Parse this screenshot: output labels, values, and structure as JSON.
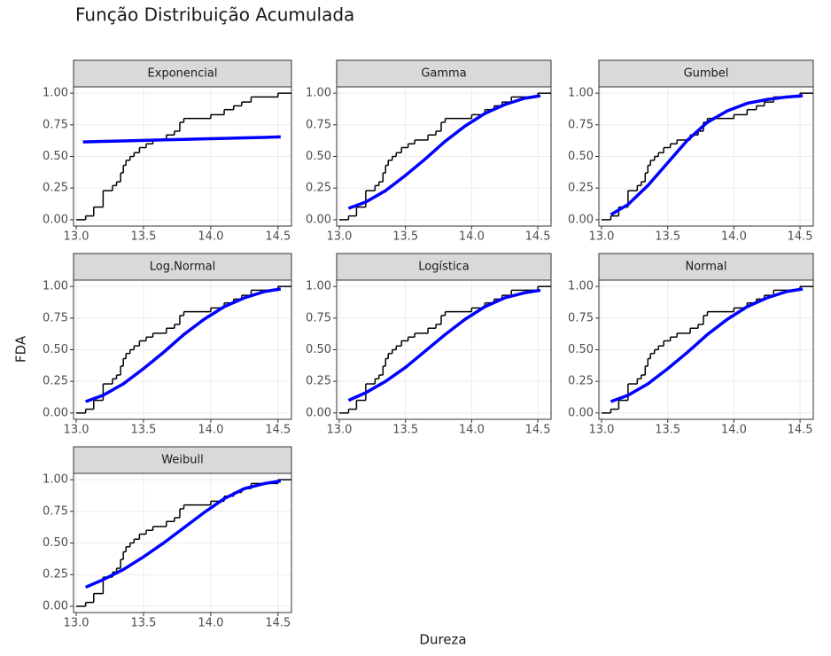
{
  "title": "Função Distribuição Acumulada",
  "xlabel": "Dureza",
  "ylabel": "FDA",
  "chart_data": [
    {
      "type": "line",
      "title": "Exponencial",
      "xlim": [
        12.98,
        14.6
      ],
      "ylim": [
        -0.05,
        1.05
      ],
      "grid": true,
      "xticks": [
        {
          "value": 13,
          "label": "13.0"
        },
        13.5,
        {
          "value": 14,
          "label": "14.0"
        },
        14.5
      ],
      "yticks": [
        {
          "value": 0,
          "label": "0.00"
        },
        0.25,
        {
          "value": 0.5,
          "label": "0.50"
        },
        0.75,
        {
          "value": 1,
          "label": "1.00"
        }
      ],
      "series": [
        {
          "color": "#000000",
          "step": "post",
          "x": [
            13.0,
            13.07,
            13.13,
            13.2,
            13.27,
            13.3,
            13.33,
            13.35,
            13.37,
            13.4,
            13.43,
            13.47,
            13.52,
            13.57,
            13.67,
            13.73,
            13.77,
            13.8,
            14.0,
            14.1,
            14.17,
            14.23,
            14.3,
            14.5,
            14.6
          ],
          "values": [
            0,
            0.03,
            0.1,
            0.23,
            0.27,
            0.3,
            0.37,
            0.43,
            0.47,
            0.5,
            0.53,
            0.57,
            0.6,
            0.63,
            0.67,
            0.7,
            0.77,
            0.8,
            0.83,
            0.87,
            0.9,
            0.93,
            0.97,
            1.0,
            1.0
          ]
        },
        {
          "color": "#0000ff",
          "x": [
            13.05,
            13.2,
            13.35,
            13.5,
            13.65,
            13.8,
            13.95,
            14.1,
            14.25,
            14.4,
            14.52
          ],
          "values": [
            0.615,
            0.619,
            0.623,
            0.627,
            0.631,
            0.635,
            0.639,
            0.643,
            0.647,
            0.651,
            0.655
          ]
        }
      ]
    },
    {
      "type": "line",
      "title": "Gamma",
      "xlim": [
        12.98,
        14.6
      ],
      "ylim": [
        -0.05,
        1.05
      ],
      "grid": true,
      "xticks": [
        {
          "value": 13,
          "label": "13.0"
        },
        13.5,
        {
          "value": 14,
          "label": "14.0"
        },
        14.5
      ],
      "yticks": [
        {
          "value": 0,
          "label": "0.00"
        },
        0.25,
        {
          "value": 0.5,
          "label": "0.50"
        },
        0.75,
        {
          "value": 1,
          "label": "1.00"
        }
      ],
      "series": [
        {
          "color": "#000000",
          "step": "post",
          "x": [
            13.0,
            13.07,
            13.13,
            13.2,
            13.27,
            13.3,
            13.33,
            13.35,
            13.37,
            13.4,
            13.43,
            13.47,
            13.52,
            13.57,
            13.67,
            13.73,
            13.77,
            13.8,
            14.0,
            14.1,
            14.17,
            14.23,
            14.3,
            14.5,
            14.6
          ],
          "values": [
            0,
            0.03,
            0.1,
            0.23,
            0.27,
            0.3,
            0.37,
            0.43,
            0.47,
            0.5,
            0.53,
            0.57,
            0.6,
            0.63,
            0.67,
            0.7,
            0.77,
            0.8,
            0.83,
            0.87,
            0.9,
            0.93,
            0.97,
            1.0,
            1.0
          ]
        },
        {
          "color": "#0000ff",
          "x": [
            13.07,
            13.2,
            13.35,
            13.5,
            13.65,
            13.8,
            13.95,
            14.1,
            14.25,
            14.4,
            14.52
          ],
          "values": [
            0.09,
            0.14,
            0.23,
            0.35,
            0.48,
            0.62,
            0.74,
            0.84,
            0.91,
            0.96,
            0.98
          ]
        }
      ]
    },
    {
      "type": "line",
      "title": "Gumbel",
      "xlim": [
        12.98,
        14.6
      ],
      "ylim": [
        -0.05,
        1.05
      ],
      "grid": true,
      "xticks": [
        {
          "value": 13,
          "label": "13.0"
        },
        13.5,
        {
          "value": 14,
          "label": "14.0"
        },
        14.5
      ],
      "yticks": [
        {
          "value": 0,
          "label": "0.00"
        },
        0.25,
        {
          "value": 0.5,
          "label": "0.50"
        },
        0.75,
        {
          "value": 1,
          "label": "1.00"
        }
      ],
      "series": [
        {
          "color": "#000000",
          "step": "post",
          "x": [
            13.0,
            13.07,
            13.13,
            13.2,
            13.27,
            13.3,
            13.33,
            13.35,
            13.37,
            13.4,
            13.43,
            13.47,
            13.52,
            13.57,
            13.67,
            13.73,
            13.77,
            13.8,
            14.0,
            14.1,
            14.17,
            14.23,
            14.3,
            14.5,
            14.6
          ],
          "values": [
            0,
            0.03,
            0.1,
            0.23,
            0.27,
            0.3,
            0.37,
            0.43,
            0.47,
            0.5,
            0.53,
            0.57,
            0.6,
            0.63,
            0.67,
            0.7,
            0.77,
            0.8,
            0.83,
            0.87,
            0.9,
            0.93,
            0.97,
            1.0,
            1.0
          ]
        },
        {
          "color": "#0000ff",
          "x": [
            13.07,
            13.2,
            13.35,
            13.5,
            13.65,
            13.8,
            13.95,
            14.1,
            14.25,
            14.4,
            14.52
          ],
          "values": [
            0.04,
            0.12,
            0.27,
            0.45,
            0.63,
            0.77,
            0.86,
            0.92,
            0.95,
            0.97,
            0.98
          ]
        }
      ]
    },
    {
      "type": "line",
      "title": "Log.Normal",
      "xlim": [
        12.98,
        14.6
      ],
      "ylim": [
        -0.05,
        1.05
      ],
      "grid": true,
      "xticks": [
        {
          "value": 13,
          "label": "13.0"
        },
        13.5,
        {
          "value": 14,
          "label": "14.0"
        },
        14.5
      ],
      "yticks": [
        {
          "value": 0,
          "label": "0.00"
        },
        0.25,
        {
          "value": 0.5,
          "label": "0.50"
        },
        0.75,
        {
          "value": 1,
          "label": "1.00"
        }
      ],
      "series": [
        {
          "color": "#000000",
          "step": "post",
          "x": [
            13.0,
            13.07,
            13.13,
            13.2,
            13.27,
            13.3,
            13.33,
            13.35,
            13.37,
            13.4,
            13.43,
            13.47,
            13.52,
            13.57,
            13.67,
            13.73,
            13.77,
            13.8,
            14.0,
            14.1,
            14.17,
            14.23,
            14.3,
            14.5,
            14.6
          ],
          "values": [
            0,
            0.03,
            0.1,
            0.23,
            0.27,
            0.3,
            0.37,
            0.43,
            0.47,
            0.5,
            0.53,
            0.57,
            0.6,
            0.63,
            0.67,
            0.7,
            0.77,
            0.8,
            0.83,
            0.87,
            0.9,
            0.93,
            0.97,
            1.0,
            1.0
          ]
        },
        {
          "color": "#0000ff",
          "x": [
            13.07,
            13.2,
            13.35,
            13.5,
            13.65,
            13.8,
            13.95,
            14.1,
            14.25,
            14.4,
            14.52
          ],
          "values": [
            0.09,
            0.14,
            0.23,
            0.35,
            0.48,
            0.62,
            0.74,
            0.84,
            0.91,
            0.96,
            0.98
          ]
        }
      ]
    },
    {
      "type": "line",
      "title": "Logística",
      "xlim": [
        12.98,
        14.6
      ],
      "ylim": [
        -0.05,
        1.05
      ],
      "grid": true,
      "xticks": [
        {
          "value": 13,
          "label": "13.0"
        },
        13.5,
        {
          "value": 14,
          "label": "14.0"
        },
        14.5
      ],
      "yticks": [
        {
          "value": 0,
          "label": "0.00"
        },
        0.25,
        {
          "value": 0.5,
          "label": "0.50"
        },
        0.75,
        {
          "value": 1,
          "label": "1.00"
        }
      ],
      "series": [
        {
          "color": "#000000",
          "step": "post",
          "x": [
            13.0,
            13.07,
            13.13,
            13.2,
            13.27,
            13.3,
            13.33,
            13.35,
            13.37,
            13.4,
            13.43,
            13.47,
            13.52,
            13.57,
            13.67,
            13.73,
            13.77,
            13.8,
            14.0,
            14.1,
            14.17,
            14.23,
            14.3,
            14.5,
            14.6
          ],
          "values": [
            0,
            0.03,
            0.1,
            0.23,
            0.27,
            0.3,
            0.37,
            0.43,
            0.47,
            0.5,
            0.53,
            0.57,
            0.6,
            0.63,
            0.67,
            0.7,
            0.77,
            0.8,
            0.83,
            0.87,
            0.9,
            0.93,
            0.97,
            1.0,
            1.0
          ]
        },
        {
          "color": "#0000ff",
          "x": [
            13.07,
            13.2,
            13.35,
            13.5,
            13.65,
            13.8,
            13.95,
            14.1,
            14.25,
            14.4,
            14.52
          ],
          "values": [
            0.1,
            0.16,
            0.25,
            0.36,
            0.49,
            0.62,
            0.74,
            0.84,
            0.91,
            0.95,
            0.97
          ]
        }
      ]
    },
    {
      "type": "line",
      "title": "Normal",
      "xlim": [
        12.98,
        14.6
      ],
      "ylim": [
        -0.05,
        1.05
      ],
      "grid": true,
      "xticks": [
        {
          "value": 13,
          "label": "13.0"
        },
        13.5,
        {
          "value": 14,
          "label": "14.0"
        },
        14.5
      ],
      "yticks": [
        {
          "value": 0,
          "label": "0.00"
        },
        0.25,
        {
          "value": 0.5,
          "label": "0.50"
        },
        0.75,
        {
          "value": 1,
          "label": "1.00"
        }
      ],
      "series": [
        {
          "color": "#000000",
          "step": "post",
          "x": [
            13.0,
            13.07,
            13.13,
            13.2,
            13.27,
            13.3,
            13.33,
            13.35,
            13.37,
            13.4,
            13.43,
            13.47,
            13.52,
            13.57,
            13.67,
            13.73,
            13.77,
            13.8,
            14.0,
            14.1,
            14.17,
            14.23,
            14.3,
            14.5,
            14.6
          ],
          "values": [
            0,
            0.03,
            0.1,
            0.23,
            0.27,
            0.3,
            0.37,
            0.43,
            0.47,
            0.5,
            0.53,
            0.57,
            0.6,
            0.63,
            0.67,
            0.7,
            0.77,
            0.8,
            0.83,
            0.87,
            0.9,
            0.93,
            0.97,
            1.0,
            1.0
          ]
        },
        {
          "color": "#0000ff",
          "x": [
            13.07,
            13.2,
            13.35,
            13.5,
            13.65,
            13.8,
            13.95,
            14.1,
            14.25,
            14.4,
            14.52
          ],
          "values": [
            0.09,
            0.14,
            0.23,
            0.35,
            0.48,
            0.62,
            0.74,
            0.84,
            0.91,
            0.96,
            0.98
          ]
        }
      ]
    },
    {
      "type": "line",
      "title": "Weibull",
      "xlim": [
        12.98,
        14.6
      ],
      "ylim": [
        -0.05,
        1.05
      ],
      "grid": true,
      "xticks": [
        {
          "value": 13,
          "label": "13.0"
        },
        13.5,
        {
          "value": 14,
          "label": "14.0"
        },
        14.5
      ],
      "yticks": [
        {
          "value": 0,
          "label": "0.00"
        },
        0.25,
        {
          "value": 0.5,
          "label": "0.50"
        },
        0.75,
        {
          "value": 1,
          "label": "1.00"
        }
      ],
      "series": [
        {
          "color": "#000000",
          "step": "post",
          "x": [
            13.0,
            13.07,
            13.13,
            13.2,
            13.27,
            13.3,
            13.33,
            13.35,
            13.37,
            13.4,
            13.43,
            13.47,
            13.52,
            13.57,
            13.67,
            13.73,
            13.77,
            13.8,
            14.0,
            14.1,
            14.17,
            14.23,
            14.3,
            14.5,
            14.6
          ],
          "values": [
            0,
            0.03,
            0.1,
            0.23,
            0.27,
            0.3,
            0.37,
            0.43,
            0.47,
            0.5,
            0.53,
            0.57,
            0.6,
            0.63,
            0.67,
            0.7,
            0.77,
            0.8,
            0.83,
            0.87,
            0.9,
            0.93,
            0.97,
            1.0,
            1.0
          ]
        },
        {
          "color": "#0000ff",
          "x": [
            13.07,
            13.2,
            13.35,
            13.5,
            13.65,
            13.8,
            13.95,
            14.1,
            14.25,
            14.4,
            14.52
          ],
          "values": [
            0.15,
            0.21,
            0.29,
            0.39,
            0.5,
            0.62,
            0.74,
            0.85,
            0.93,
            0.97,
            0.99
          ]
        }
      ]
    }
  ]
}
